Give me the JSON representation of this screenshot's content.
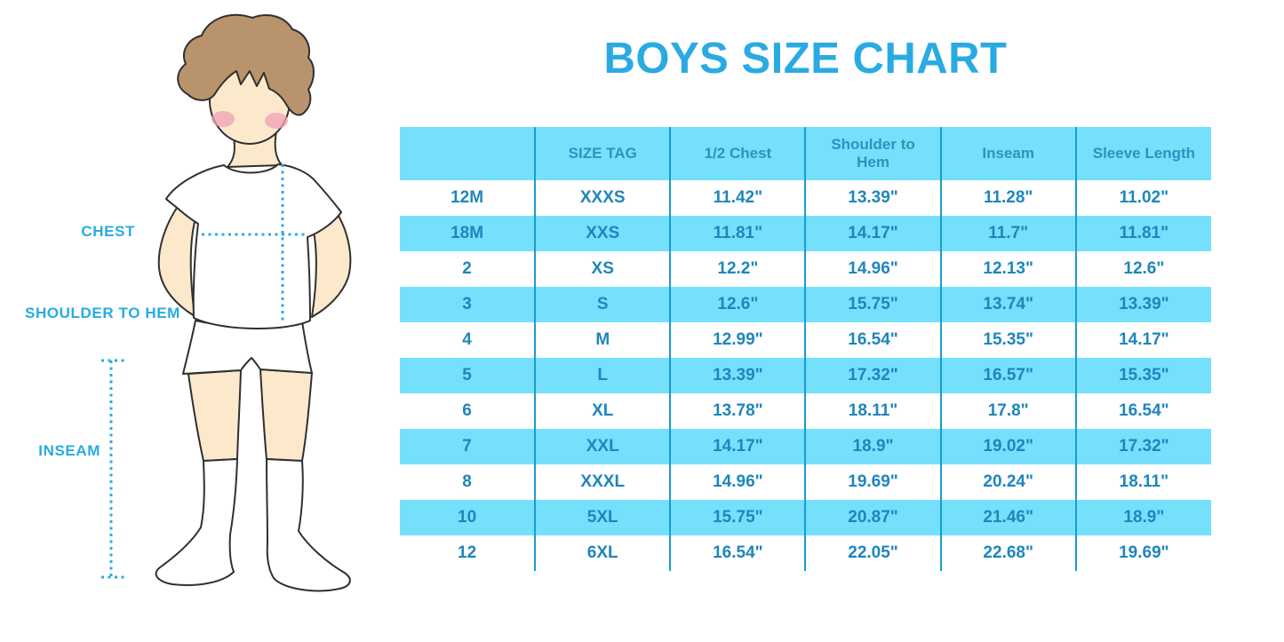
{
  "title": "BOYS SIZE CHART",
  "figure": {
    "description": "boy in white t-shirt, shorts and knee socks",
    "chest_label": "CHEST",
    "shoulder_to_hem_label": "SHOULDER TO HEM",
    "inseam_label": "INSEAM"
  },
  "colors": {
    "accent_blue": "#29ABE2",
    "table_cyan": "#74E0FC",
    "divider_blue": "#1B9CCE",
    "table_text": "#1E86BC",
    "header_text": "#2B93BE",
    "outline": "#303030",
    "skin": "#FCE9CB",
    "hair": "#B8936B",
    "blush": "#F2A0B4"
  },
  "chart_data": {
    "type": "table",
    "title": "BOYS SIZE CHART",
    "columns": [
      "",
      "SIZE TAG",
      "1/2 Chest",
      "Shoulder to Hem",
      "Inseam",
      "Sleeve Length"
    ],
    "rows": [
      [
        "12M",
        "XXXS",
        "11.42\"",
        "13.39\"",
        "11.28\"",
        "11.02\""
      ],
      [
        "18M",
        "XXS",
        "11.81\"",
        "14.17\"",
        "11.7\"",
        "11.81\""
      ],
      [
        "2",
        "XS",
        "12.2\"",
        "14.96\"",
        "12.13\"",
        "12.6\""
      ],
      [
        "3",
        "S",
        "12.6\"",
        "15.75\"",
        "13.74\"",
        "13.39\""
      ],
      [
        "4",
        "M",
        "12.99\"",
        "16.54\"",
        "15.35\"",
        "14.17\""
      ],
      [
        "5",
        "L",
        "13.39\"",
        "17.32\"",
        "16.57\"",
        "15.35\""
      ],
      [
        "6",
        "XL",
        "13.78\"",
        "18.11\"",
        "17.8\"",
        "16.54\""
      ],
      [
        "7",
        "XXL",
        "14.17\"",
        "18.9\"",
        "19.02\"",
        "17.32\""
      ],
      [
        "8",
        "XXXL",
        "14.96\"",
        "19.69\"",
        "20.24\"",
        "18.11\""
      ],
      [
        "10",
        "5XL",
        "15.75\"",
        "20.87\"",
        "21.46\"",
        "18.9\""
      ],
      [
        "12",
        "6XL",
        "16.54\"",
        "22.05\"",
        "22.68\"",
        "19.69\""
      ]
    ],
    "layout": {
      "header_fill": "cyan",
      "row_striping": "white / cyan alternating",
      "gridlines": "vertical column dividers only"
    }
  }
}
